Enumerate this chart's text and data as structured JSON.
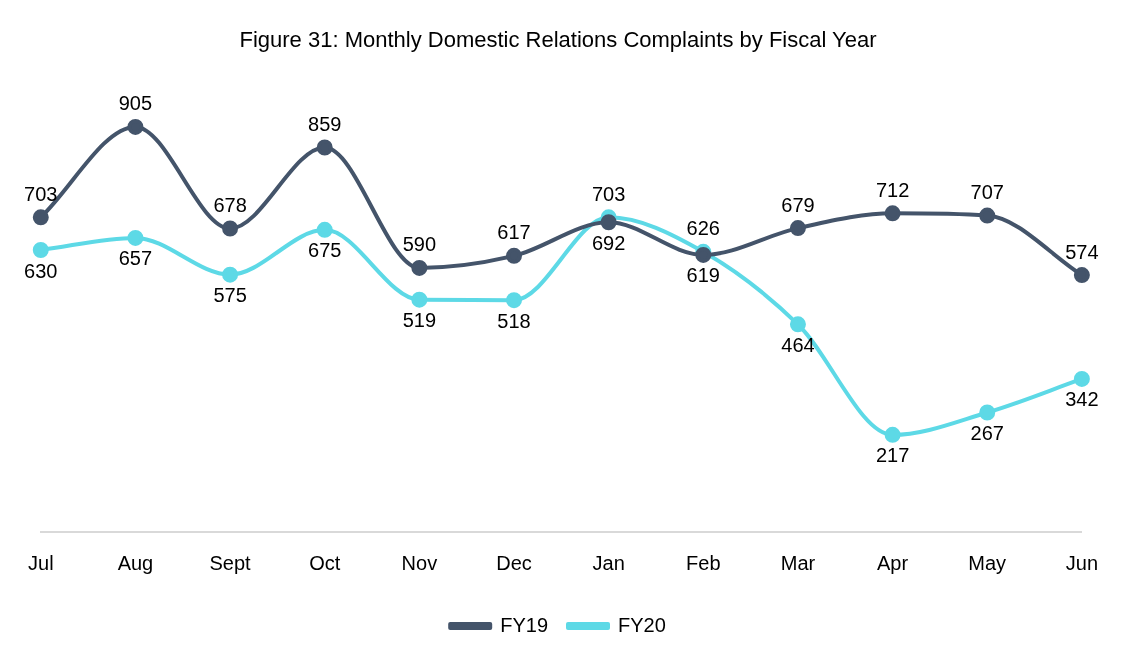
{
  "chart_data": {
    "type": "line",
    "title": "Figure 31: Monthly Domestic Relations Complaints by Fiscal Year",
    "categories": [
      "Jul",
      "Aug",
      "Sept",
      "Oct",
      "Nov",
      "Dec",
      "Jan",
      "Feb",
      "Mar",
      "Apr",
      "May",
      "Jun"
    ],
    "series": [
      {
        "name": "FY19",
        "color": "#44546a",
        "values": [
          703,
          905,
          678,
          859,
          590,
          617,
          692,
          619,
          679,
          712,
          707,
          574
        ]
      },
      {
        "name": "FY20",
        "color": "#5dd9e6",
        "values": [
          630,
          657,
          575,
          675,
          519,
          518,
          703,
          626,
          464,
          217,
          267,
          342
        ]
      }
    ],
    "data_labels": true,
    "grid": false,
    "legend": "bottom",
    "marker": "circle",
    "line_style": "solid"
  }
}
